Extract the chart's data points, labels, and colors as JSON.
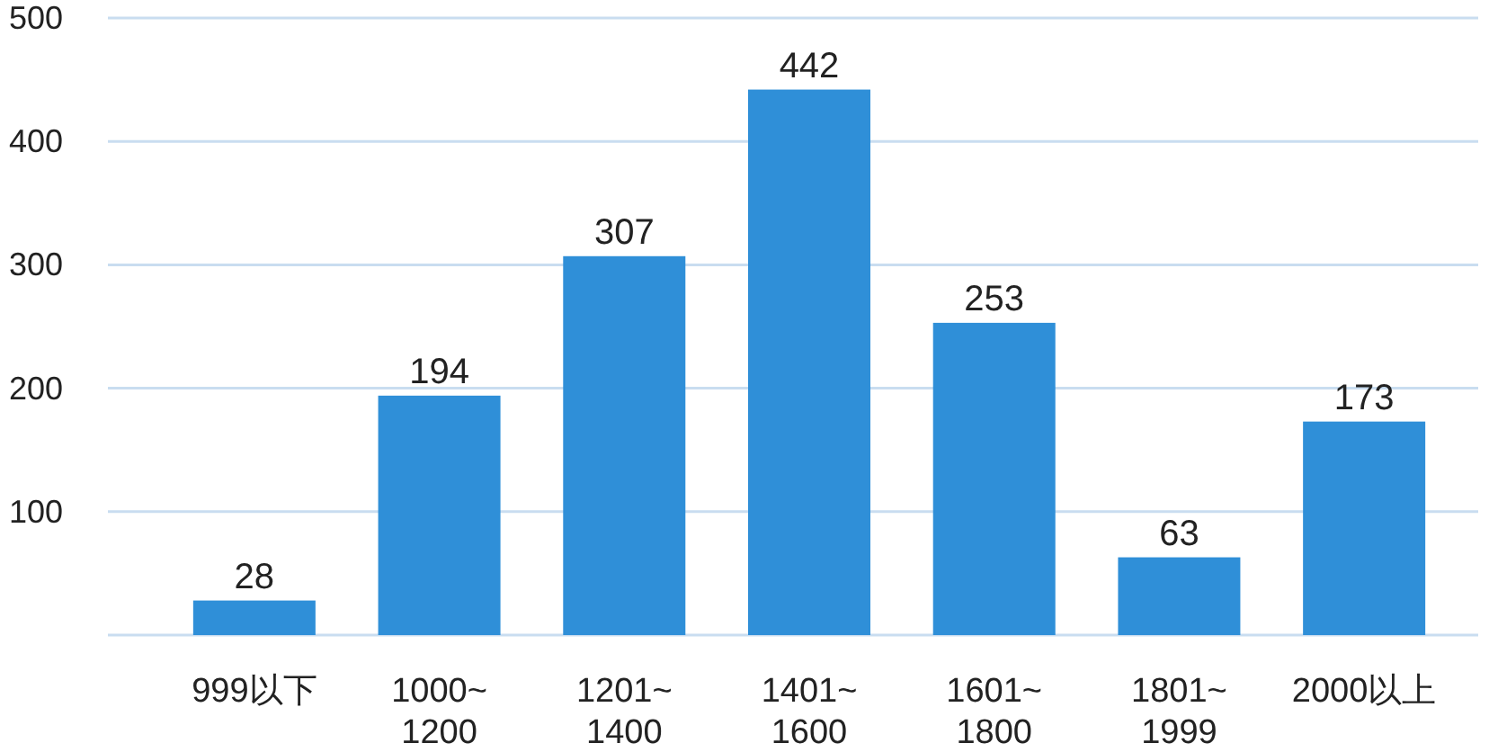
{
  "chart_data": {
    "type": "bar",
    "categories": [
      "999以下",
      "1000~1200",
      "1201~1400",
      "1401~1600",
      "1601~1800",
      "1801~1999",
      "2000以上"
    ],
    "values": [
      28,
      194,
      307,
      442,
      253,
      63,
      173
    ],
    "color": "#2f8fd8",
    "ylim": [
      0,
      500
    ],
    "yticks": [
      {
        "value": 0,
        "label": null
      },
      100,
      200,
      300,
      400,
      500
    ],
    "grid": "y",
    "data_labels": true
  }
}
